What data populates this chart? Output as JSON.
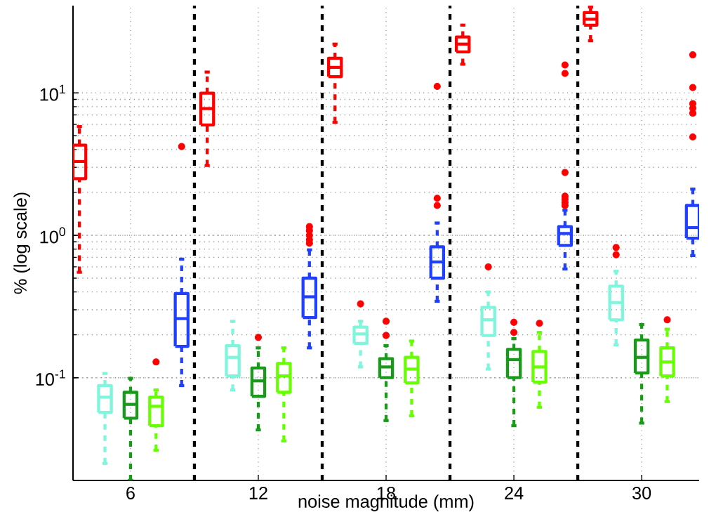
{
  "chart_data": {
    "type": "box",
    "xlabel": "noise magnitude (mm)",
    "ylabel": "% (log scale)",
    "log": "y",
    "grid": true,
    "line_style": "dashed",
    "xlim": [
      3.3,
      32.7
    ],
    "xticks": [
      6,
      12,
      18,
      24,
      30
    ],
    "ylim": [
      0.019,
      41
    ],
    "yticks": [
      {
        "value": 0.1,
        "label": "10$^{-1}$"
      },
      {
        "value": 1,
        "label": "10$^{0}$"
      },
      {
        "value": 10,
        "label": "10$^{1}$"
      }
    ],
    "ref_lines": [
      {
        "axis": "x",
        "value": 9,
        "color": "#000000",
        "line_style": "dashed"
      },
      {
        "axis": "x",
        "value": 15,
        "color": "#000000",
        "line_style": "dashed"
      },
      {
        "axis": "x",
        "value": 21,
        "color": "#000000",
        "line_style": "dashed"
      },
      {
        "axis": "x",
        "value": 27,
        "color": "#000000",
        "line_style": "dashed"
      }
    ],
    "series": [
      {
        "color": "#ff0000",
        "x": [
          3.6,
          9.6,
          15.6,
          21.6,
          27.6
        ],
        "boxes": [
          {
            "low": 0.55,
            "q1": 2.5,
            "median": 3.3,
            "q3": 4.3,
            "high": 5.8
          },
          {
            "low": 3.09,
            "q1": 5.96,
            "median": 7.76,
            "q3": 9.95,
            "high": 14
          },
          {
            "low": 6.2,
            "q1": 13,
            "median": 15.1,
            "q3": 17.5,
            "high": 22
          },
          {
            "low": 15.9,
            "q1": 19.4,
            "median": 22,
            "q3": 24.7,
            "high": 29.9
          },
          {
            "low": 23.2,
            "q1": 29.9,
            "median": 32.9,
            "q3": 36.6,
            "high": 40
          }
        ]
      },
      {
        "color": "#7ff5dc",
        "x": [
          4.8,
          10.8,
          16.8,
          22.8,
          28.8
        ],
        "boxes": [
          {
            "low": 0.025,
            "q1": 0.057,
            "median": 0.073,
            "q3": 0.088,
            "high": 0.107
          },
          {
            "low": 0.082,
            "q1": 0.103,
            "median": 0.139,
            "q3": 0.168,
            "high": 0.249
          },
          {
            "low": 0.119,
            "q1": 0.174,
            "median": 0.203,
            "q3": 0.227,
            "high": 0.249,
            "outliers": [
              0.33
            ]
          },
          {
            "low": 0.115,
            "q1": 0.198,
            "median": 0.255,
            "q3": 0.312,
            "high": 0.4,
            "outliers": [
              0.6
            ]
          },
          {
            "low": 0.17,
            "q1": 0.255,
            "median": 0.337,
            "q3": 0.44,
            "high": 0.56,
            "outliers": [
              0.82,
              0.73
            ]
          }
        ]
      },
      {
        "color": "#1a9a1a",
        "x": [
          6,
          12,
          18,
          24,
          30
        ],
        "boxes": [
          {
            "low": 0.019,
            "q1": 0.052,
            "median": 0.065,
            "q3": 0.079,
            "high": 0.099
          },
          {
            "low": 0.043,
            "q1": 0.074,
            "median": 0.095,
            "q3": 0.117,
            "high": 0.162,
            "outliers": [
              0.192
            ]
          },
          {
            "low": 0.05,
            "q1": 0.1,
            "median": 0.119,
            "q3": 0.136,
            "high": 0.168,
            "outliers": [
              0.249,
              0.198
            ]
          },
          {
            "low": 0.046,
            "q1": 0.1,
            "median": 0.134,
            "q3": 0.158,
            "high": 0.188,
            "outliers": [
              0.245,
              0.208
            ]
          },
          {
            "low": 0.048,
            "q1": 0.108,
            "median": 0.139,
            "q3": 0.184,
            "high": 0.236
          }
        ]
      },
      {
        "color": "#66ff00",
        "x": [
          7.2,
          13.2,
          19.2,
          25.2,
          31.2
        ],
        "boxes": [
          {
            "low": 0.031,
            "q1": 0.046,
            "median": 0.063,
            "q3": 0.073,
            "high": 0.082,
            "outliers": [
              0.129
            ]
          },
          {
            "low": 0.036,
            "q1": 0.079,
            "median": 0.103,
            "q3": 0.126,
            "high": 0.162
          },
          {
            "low": 0.054,
            "q1": 0.092,
            "median": 0.115,
            "q3": 0.139,
            "high": 0.181
          },
          {
            "low": 0.062,
            "q1": 0.093,
            "median": 0.119,
            "q3": 0.153,
            "high": 0.208,
            "outliers": [
              0.241
            ]
          },
          {
            "low": 0.068,
            "q1": 0.103,
            "median": 0.129,
            "q3": 0.162,
            "high": 0.219,
            "outliers": [
              0.255
            ]
          }
        ]
      },
      {
        "color": "#2040ff",
        "x": [
          8.4,
          14.4,
          20.4,
          26.4,
          32.4
        ],
        "boxes": [
          {
            "low": 0.088,
            "q1": 0.166,
            "median": 0.26,
            "q3": 0.39,
            "high": 0.68,
            "outliers": [
              4.2
            ]
          },
          {
            "low": 0.162,
            "q1": 0.264,
            "median": 0.37,
            "q3": 0.5,
            "high": 0.79,
            "outliers": [
              1.15,
              1.08,
              1.0,
              0.93,
              0.88
            ]
          },
          {
            "low": 0.344,
            "q1": 0.5,
            "median": 0.65,
            "q3": 0.83,
            "high": 1.22,
            "outliers": [
              1.82,
              1.62,
              11.1
            ]
          },
          {
            "low": 0.58,
            "q1": 0.85,
            "median": 1.03,
            "q3": 1.15,
            "high": 1.5,
            "outliers": [
              2.76,
              1.88,
              1.79,
              1.7,
              1.62,
              15.7,
              13.7
            ]
          },
          {
            "low": 0.72,
            "q1": 0.955,
            "median": 1.13,
            "q3": 1.62,
            "high": 2.11,
            "outliers": [
              18.5,
              10.9,
              8.4,
              7.8,
              7.2,
              4.9
            ]
          }
        ]
      }
    ]
  }
}
